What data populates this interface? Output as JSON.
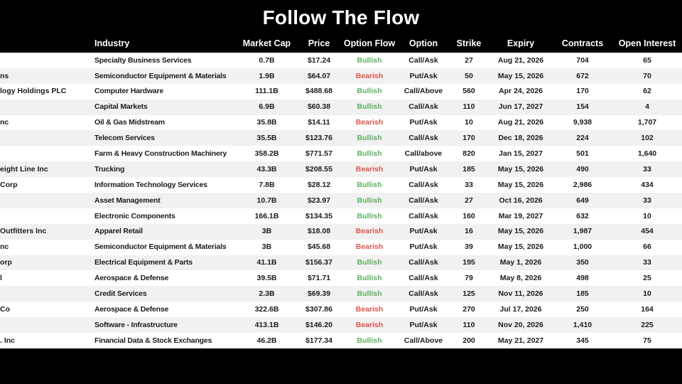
{
  "title": "Follow The Flow",
  "colors": {
    "background": "#000000",
    "header_text": "#ffffff",
    "body_text": "#1b1b1b",
    "row_even": "#ffffff",
    "row_odd": "#f1f1f1",
    "bullish": "#5cb05f",
    "bearish": "#dd544b"
  },
  "chart_data": {
    "type": "table",
    "title": "Follow The Flow",
    "columns": [
      "",
      "Industry",
      "Market Cap",
      "Price",
      "Option Flow",
      "Option",
      "Strike",
      "Expiry",
      "Contracts",
      "Open Interest"
    ],
    "column_keys": [
      "company-name",
      "industry",
      "market-cap",
      "price",
      "option-flow",
      "option",
      "strike",
      "expiry",
      "contracts",
      "open-interest"
    ],
    "rows": [
      [
        "",
        "Specialty Business Services",
        "0.7B",
        "$17.24",
        "Bullish",
        "Call/Ask",
        "27",
        "Aug 21, 2026",
        "704",
        "65"
      ],
      [
        "ns",
        "Semiconductor Equipment & Materials",
        "1.9B",
        "$64.07",
        "Bearish",
        "Put/Ask",
        "50",
        "May 15, 2026",
        "672",
        "70"
      ],
      [
        "logy Holdings PLC",
        "Computer Hardware",
        "111.1B",
        "$488.68",
        "Bullish",
        "Call/Above",
        "560",
        "Apr 24, 2026",
        "170",
        "62"
      ],
      [
        "",
        "Capital Markets",
        "6.9B",
        "$60.38",
        "Bullish",
        "Call/Ask",
        "110",
        "Jun 17, 2027",
        "154",
        "4"
      ],
      [
        "nc",
        "Oil & Gas Midstream",
        "35.8B",
        "$14.11",
        "Bearish",
        "Put/Ask",
        "10",
        "Aug 21, 2026",
        "9,938",
        "1,707"
      ],
      [
        "",
        "Telecom Services",
        "35.5B",
        "$123.76",
        "Bullish",
        "Call/Ask",
        "170",
        "Dec 18, 2026",
        "224",
        "102"
      ],
      [
        "",
        "Farm & Heavy Construction Machinery",
        "358.2B",
        "$771.57",
        "Bullish",
        "Call/above",
        "820",
        "Jan 15, 2027",
        "501",
        "1,640"
      ],
      [
        "eight Line Inc",
        "Trucking",
        "43.3B",
        "$208.55",
        "Bearish",
        "Put/Ask",
        "185",
        "May 15, 2026",
        "490",
        "33"
      ],
      [
        "Corp",
        "Information Technology Services",
        "7.8B",
        "$28.12",
        "Bullish",
        "Call/Ask",
        "33",
        "May 15, 2026",
        "2,986",
        "434"
      ],
      [
        "",
        "Asset Management",
        "10.7B",
        "$23.97",
        "Bullish",
        "Call/Ask",
        "27",
        "Oct 16, 2026",
        "649",
        "33"
      ],
      [
        "",
        "Electronic Components",
        "166.1B",
        "$134.35",
        "Bullish",
        "Call/Ask",
        "160",
        "Mar 19, 2027",
        "632",
        "10"
      ],
      [
        "Outfitters Inc",
        "Apparel Retail",
        "3B",
        "$18.08",
        "Bearish",
        "Put/Ask",
        "16",
        "May 15, 2026",
        "1,987",
        "454"
      ],
      [
        "nc",
        "Semiconductor Equipment & Materials",
        "3B",
        "$45.68",
        "Bearish",
        "Put/Ask",
        "39",
        "May 15, 2026",
        "1,000",
        "66"
      ],
      [
        "orp",
        "Electrical Equipment & Parts",
        "41.1B",
        "$156.37",
        "Bullish",
        "Call/Ask",
        "195",
        "May 1, 2026",
        "350",
        "33"
      ],
      [
        "l",
        "Aerospace & Defense",
        "39.5B",
        "$71.71",
        "Bullish",
        "Call/Ask",
        "79",
        "May 8, 2026",
        "498",
        "25"
      ],
      [
        "",
        "Credit Services",
        "2.3B",
        "$69.39",
        "Bullish",
        "Call/Ask",
        "125",
        "Nov 11, 2026",
        "185",
        "10"
      ],
      [
        "Co",
        "Aerospace & Defense",
        "322.6B",
        "$307.86",
        "Bearish",
        "Put/Ask",
        "270",
        "Jul 17, 2026",
        "250",
        "164"
      ],
      [
        "",
        "Software - Infrastructure",
        "413.1B",
        "$146.20",
        "Bearish",
        "Put/Ask",
        "110",
        "Nov 20, 2026",
        "1,410",
        "225"
      ],
      [
        ". Inc",
        "Financial Data & Stock Exchanges",
        "46.2B",
        "$177.34",
        "Bullish",
        "Call/Above",
        "200",
        "May 21, 2027",
        "345",
        "75"
      ]
    ]
  }
}
